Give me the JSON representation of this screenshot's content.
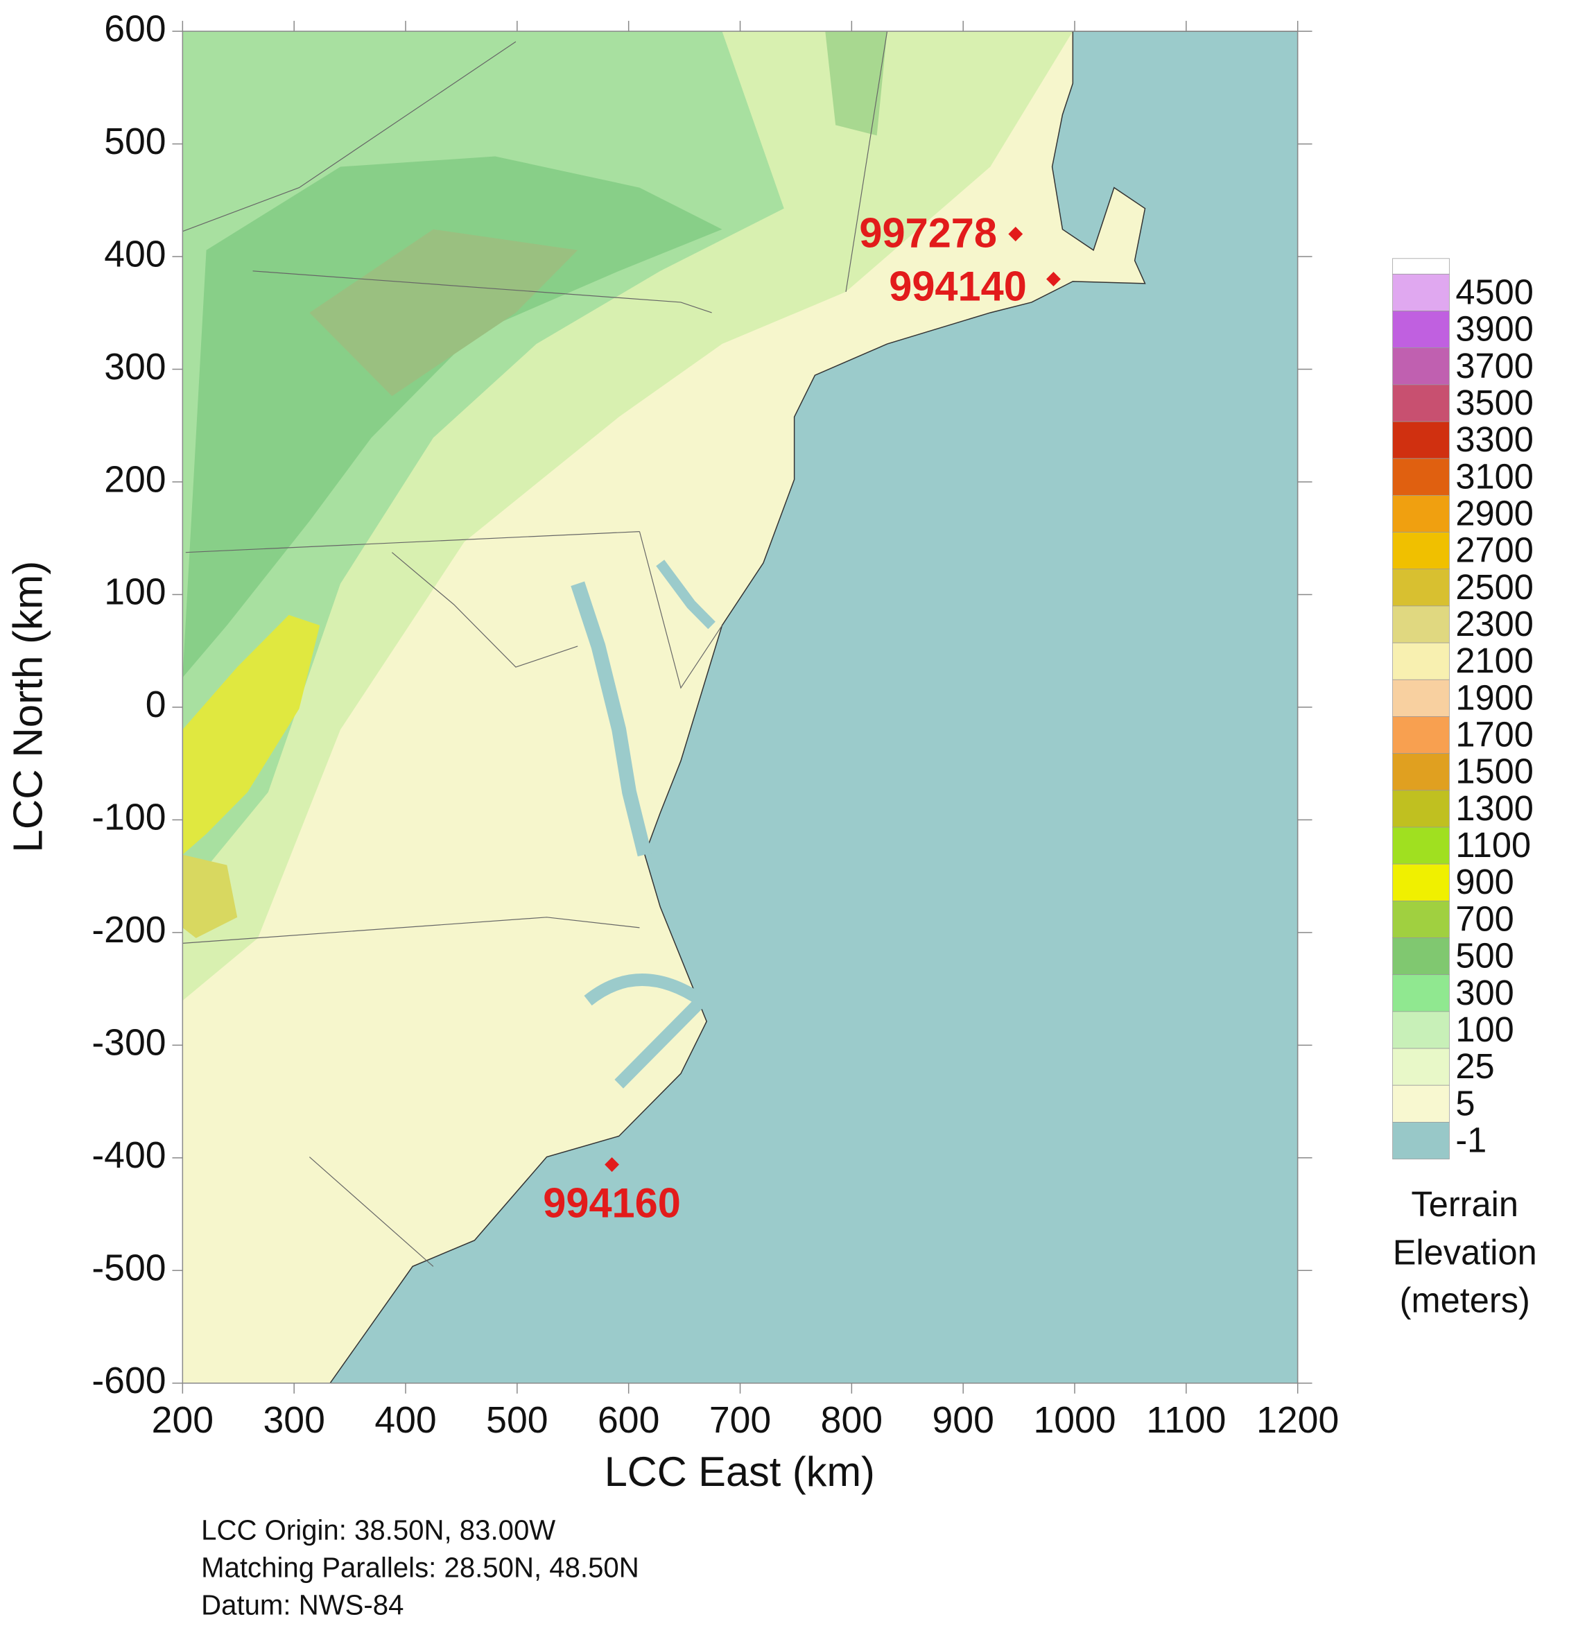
{
  "chart_data": {
    "type": "map",
    "xlabel": "LCC East (km)",
    "ylabel": "LCC North (km)",
    "xlim": [
      200,
      1200
    ],
    "ylim": [
      -600,
      600
    ],
    "xticks": [
      200,
      300,
      400,
      500,
      600,
      700,
      800,
      900,
      1000,
      1100,
      1200
    ],
    "yticks": [
      -600,
      -500,
      -400,
      -300,
      -200,
      -100,
      0,
      100,
      200,
      300,
      400,
      500,
      600
    ],
    "stations": [
      {
        "name": "997278",
        "x": 947,
        "y": 420,
        "color": "#e21b1b"
      },
      {
        "name": "994140",
        "x": 981,
        "y": 380,
        "color": "#e21b1b"
      },
      {
        "name": "994160",
        "x": 585,
        "y": -406,
        "color": "#e21b1b"
      }
    ],
    "colorbar": {
      "levels": [
        4500,
        3900,
        3700,
        3500,
        3300,
        3100,
        2900,
        2700,
        2500,
        2300,
        2100,
        1900,
        1700,
        1500,
        1300,
        1100,
        900,
        700,
        500,
        300,
        100,
        25,
        5,
        -1
      ],
      "colors": [
        "#e0a8f0",
        "#c060e0",
        "#c060b0",
        "#c85070",
        "#d03010",
        "#e06010",
        "#f0a010",
        "#f0c000",
        "#d8c030",
        "#e0d880",
        "#f8f0b0",
        "#f8d0a0",
        "#f8a050",
        "#e0a020",
        "#c0c020",
        "#a0e020",
        "#f0f000",
        "#a0d040",
        "#80c870",
        "#90e890",
        "#c8f0b8",
        "#e8f8c8",
        "#f8f8d0",
        "#98c8c8"
      ],
      "title": [
        "Terrain",
        "Elevation",
        "(meters)"
      ]
    },
    "footnote": [
      "LCC Origin: 38.50N, 83.00W",
      "Matching Parallels: 28.50N, 48.50N",
      "Datum: NWS-84"
    ]
  }
}
